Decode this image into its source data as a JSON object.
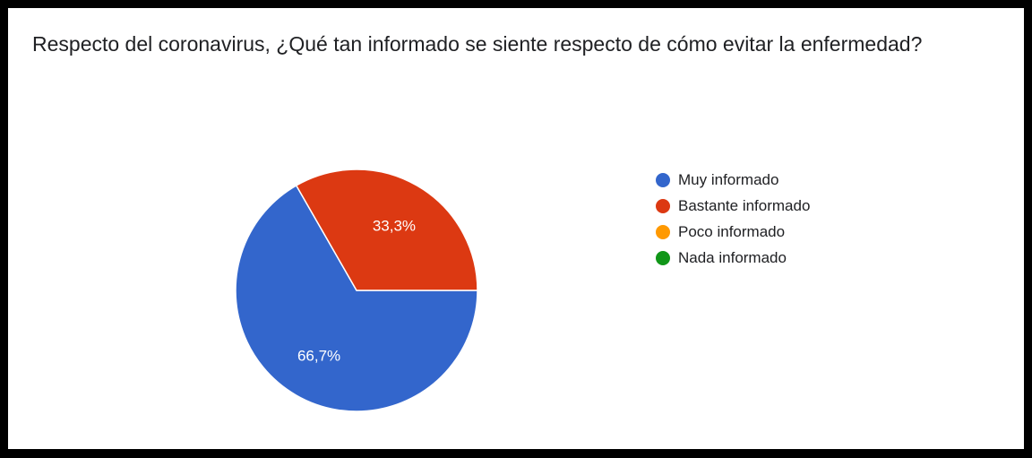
{
  "chart_data": {
    "type": "pie",
    "title": "Respecto del coronavirus, ¿Qué tan informado se siente respecto de cómo evitar la enfermedad?",
    "slices": [
      {
        "label": "Muy informado",
        "value": 66.7,
        "data_label": "66,7%",
        "color": "#3366cc"
      },
      {
        "label": "Bastante informado",
        "value": 33.3,
        "data_label": "33,3%",
        "color": "#dc3912"
      },
      {
        "label": "Poco informado",
        "value": 0,
        "data_label": "",
        "color": "#ff9900"
      },
      {
        "label": "Nada informado",
        "value": 0,
        "data_label": "",
        "color": "#109618"
      }
    ],
    "legend_position": "right"
  }
}
